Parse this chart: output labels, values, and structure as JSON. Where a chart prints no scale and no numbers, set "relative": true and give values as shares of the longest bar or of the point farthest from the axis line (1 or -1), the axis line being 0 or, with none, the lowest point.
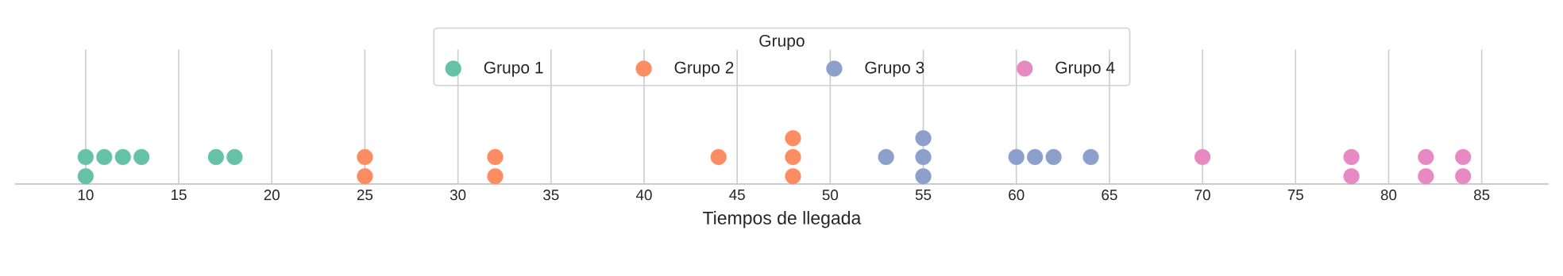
{
  "chart_data": {
    "type": "scatter",
    "xlabel": "Tiempos de llegada",
    "legend_title": "Grupo",
    "relative": true,
    "xlim": [
      6.2,
      88.6
    ],
    "xticks": [
      10,
      15,
      20,
      25,
      30,
      35,
      40,
      45,
      50,
      55,
      60,
      65,
      70,
      75,
      80,
      85
    ],
    "grid": "x",
    "legend": "top",
    "marker": "circle",
    "series": [
      {
        "name": "Grupo 1",
        "color": "#66c2a5",
        "x": [
          10,
          10,
          11,
          12,
          13,
          17,
          18
        ],
        "values": [
          0.59,
          0.17,
          0.59,
          0.59,
          0.59,
          0.59,
          0.59
        ]
      },
      {
        "name": "Grupo 2",
        "color": "#fc8d62",
        "x": [
          25,
          25,
          32,
          32,
          44,
          48,
          48,
          48
        ],
        "values": [
          0.59,
          0.17,
          0.59,
          0.17,
          0.59,
          1,
          0.59,
          0.17
        ]
      },
      {
        "name": "Grupo 3",
        "color": "#8da0cb",
        "x": [
          53,
          55,
          55,
          55,
          60,
          61,
          62,
          64
        ],
        "values": [
          0.59,
          1,
          0.59,
          0.17,
          0.59,
          0.59,
          0.59,
          0.59
        ]
      },
      {
        "name": "Grupo 4",
        "color": "#e78ac3",
        "x": [
          70,
          78,
          78,
          82,
          82,
          84,
          84
        ],
        "values": [
          0.59,
          0.59,
          0.17,
          0.59,
          0.17,
          0.59,
          0.17
        ]
      }
    ]
  }
}
